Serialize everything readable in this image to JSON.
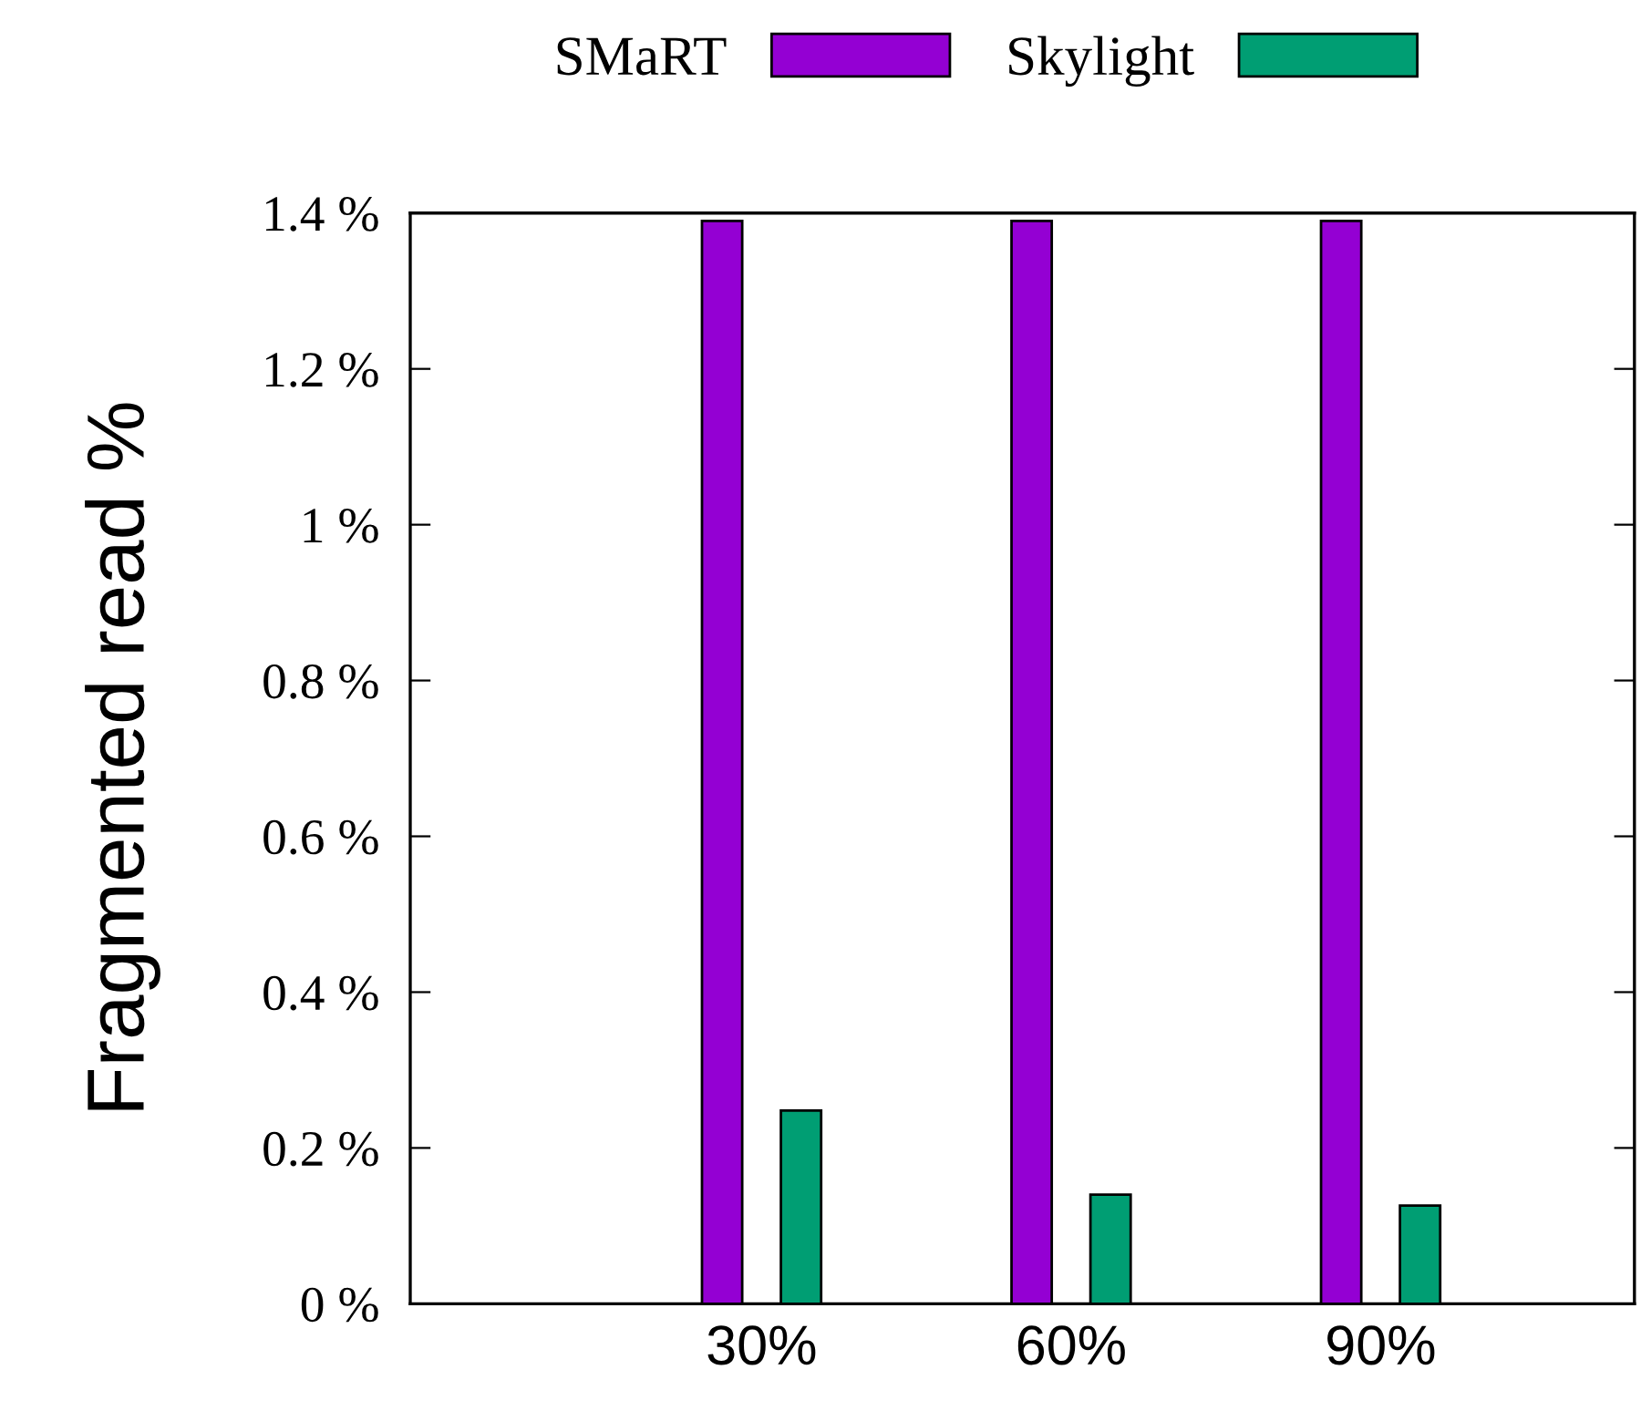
{
  "chart_data": {
    "type": "bar",
    "ylabel": "Fragmented read %",
    "categories": [
      "30%",
      "60%",
      "90%"
    ],
    "series": [
      {
        "name": "SMaRT",
        "color": "#9400d3",
        "values": [
          1.39,
          1.39,
          1.39
        ]
      },
      {
        "name": "Skylight",
        "color": "#009e73",
        "values": [
          0.248,
          0.14,
          0.126
        ]
      }
    ],
    "ylim": [
      0,
      1.4
    ],
    "yticks": [
      {
        "value": 0,
        "label": "0 %"
      },
      {
        "value": 0.2,
        "label": "0.2 %"
      },
      {
        "value": 0.4,
        "label": "0.4 %"
      },
      {
        "value": 0.6,
        "label": "0.6 %"
      },
      {
        "value": 0.8,
        "label": "0.8 %"
      },
      {
        "value": 1,
        "label": "1 %"
      },
      {
        "value": 1.2,
        "label": "1.2 %"
      },
      {
        "value": 1.4,
        "label": "1.4 %"
      }
    ],
    "grid": false,
    "legend": "top"
  }
}
